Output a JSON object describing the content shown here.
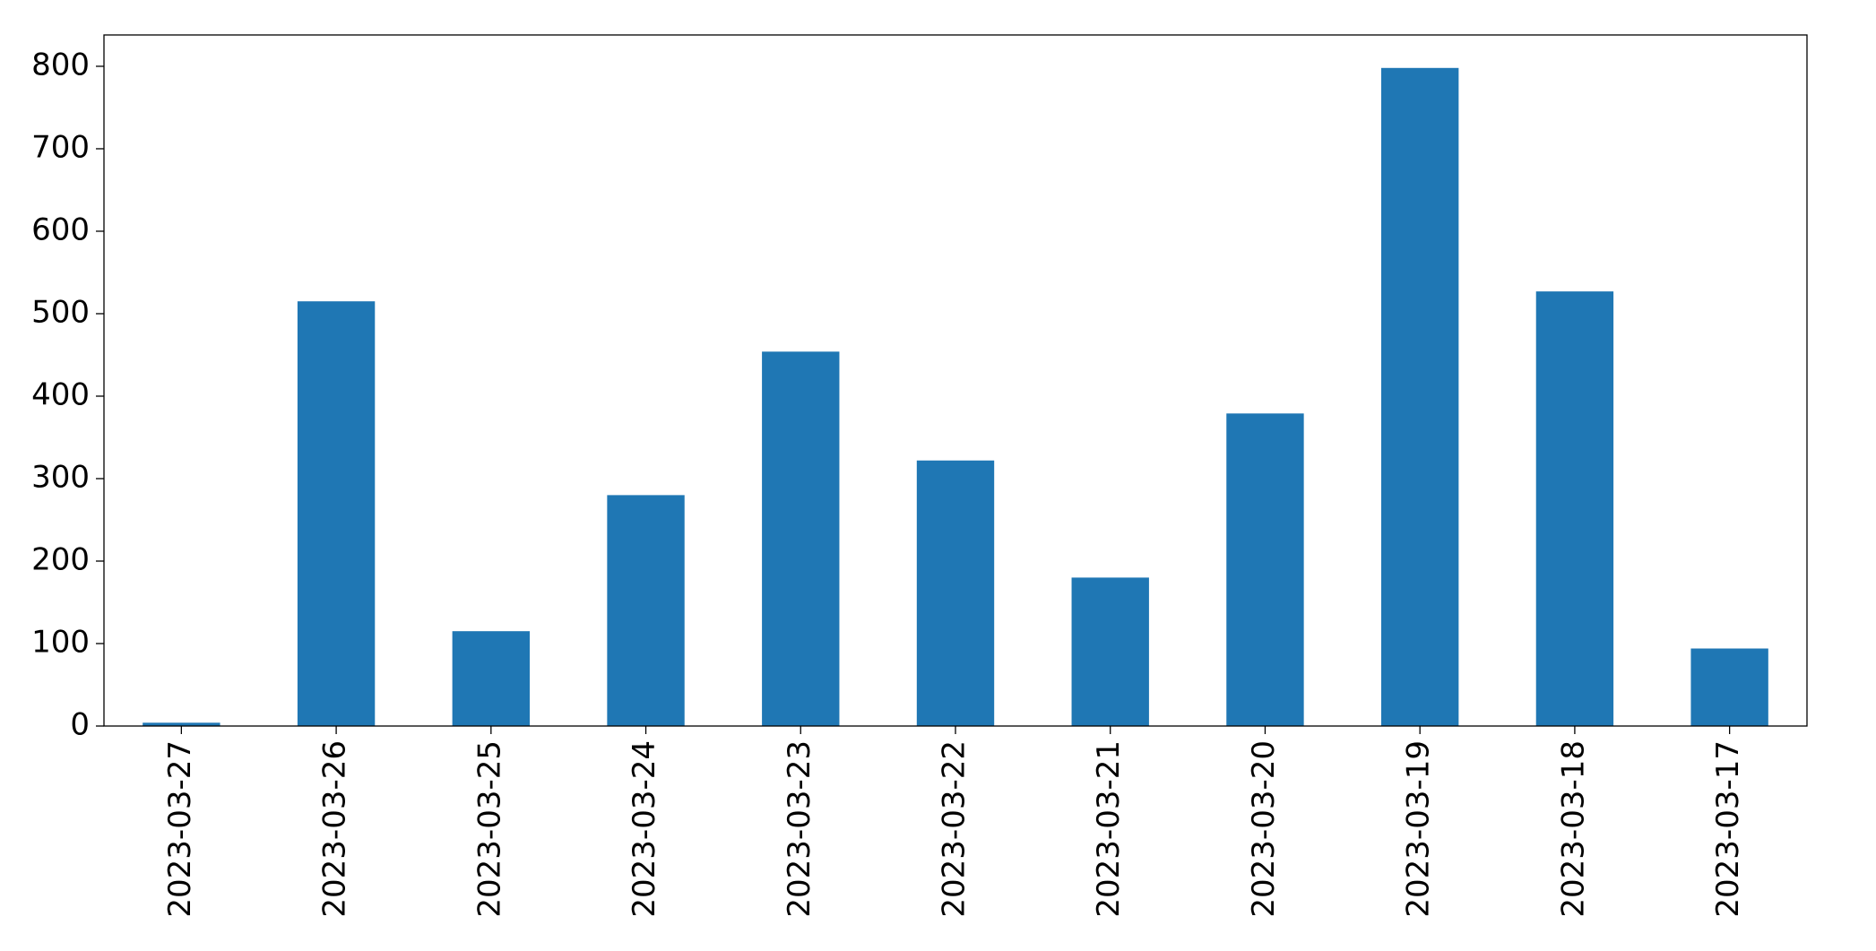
{
  "chart_data": {
    "type": "bar",
    "categories": [
      "2023-03-27",
      "2023-03-26",
      "2023-03-25",
      "2023-03-24",
      "2023-03-23",
      "2023-03-22",
      "2023-03-21",
      "2023-03-20",
      "2023-03-19",
      "2023-03-18",
      "2023-03-17"
    ],
    "values": [
      4,
      515,
      115,
      280,
      454,
      322,
      180,
      379,
      798,
      527,
      94
    ],
    "color": "#1f77b4",
    "ylim": [
      0,
      838
    ],
    "yticks": [
      0,
      100,
      200,
      300,
      400,
      500,
      600,
      700,
      800
    ],
    "grid": false
  }
}
